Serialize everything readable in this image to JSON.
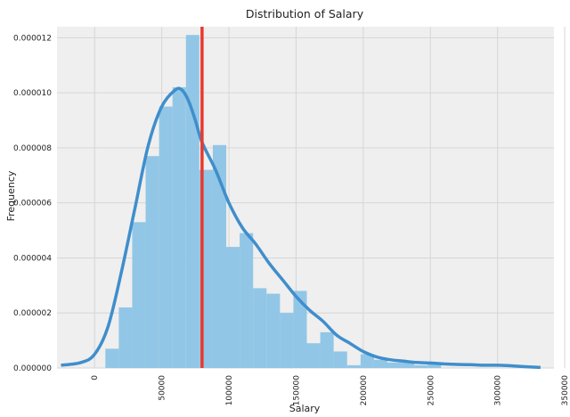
{
  "chart_data": {
    "type": "bar",
    "title": "Distribution of Salary",
    "xlabel": "Salary",
    "ylabel": "Frequency",
    "xlim": [
      -28000,
      342000
    ],
    "ylim": [
      0,
      1.24e-05
    ],
    "x_ticks": [
      0,
      50000,
      100000,
      150000,
      200000,
      250000,
      300000,
      350000
    ],
    "y_ticks": [
      {
        "value": 0.0,
        "label": "0.000000"
      },
      {
        "value": 2e-06,
        "label": "0.000002"
      },
      {
        "value": 4e-06,
        "label": "0.000004"
      },
      {
        "value": 6e-06,
        "label": "0.000006"
      },
      {
        "value": 8e-06,
        "label": "0.000008"
      },
      {
        "value": 1e-05,
        "label": "0.000010"
      },
      {
        "value": 1.2e-05,
        "label": "0.000012"
      }
    ],
    "grid": true,
    "histogram": {
      "bin_start": 8000,
      "bin_width": 10000,
      "values": [
        7e-07,
        2.2e-06,
        5.3e-06,
        7.7e-06,
        9.5e-06,
        1.02e-05,
        1.21e-05,
        7.2e-06,
        8.1e-06,
        4.4e-06,
        4.9e-06,
        2.9e-06,
        2.7e-06,
        2e-06,
        2.8e-06,
        9e-07,
        1.3e-06,
        6e-07,
        1e-07,
        5e-07,
        3e-07,
        2e-07,
        2e-07,
        1e-07,
        2e-07
      ],
      "color": "#92c6e6"
    },
    "kde": {
      "x": [
        -25000,
        -10000,
        0,
        10000,
        20000,
        30000,
        40000,
        50000,
        60000,
        65000,
        70000,
        75000,
        80000,
        90000,
        100000,
        110000,
        120000,
        130000,
        140000,
        150000,
        160000,
        170000,
        180000,
        190000,
        200000,
        210000,
        220000,
        230000,
        240000,
        250000,
        260000,
        270000,
        280000,
        290000,
        300000,
        310000,
        320000,
        332000
      ],
      "y": [
        1e-07,
        2e-07,
        5e-07,
        1.5e-06,
        3.5e-06,
        5.8e-06,
        8.1e-06,
        9.5e-06,
        1.01e-05,
        1.01e-05,
        9.7e-06,
        9e-06,
        8.2e-06,
        7.2e-06,
        6e-06,
        5.1e-06,
        4.5e-06,
        3.8e-06,
        3.2e-06,
        2.6e-06,
        2.1e-06,
        1.7e-06,
        1.2e-06,
        9e-07,
        6e-07,
        4e-07,
        3e-07,
        2.5e-07,
        2e-07,
        1.8e-07,
        1.5e-07,
        1.3e-07,
        1.2e-07,
        1e-07,
        1e-07,
        8e-08,
        5e-08,
        2e-08
      ],
      "color": "#3f8ecc"
    },
    "reference_line": {
      "x": 80000,
      "color": "#e8392e"
    },
    "colors": {
      "plot_background": "#efefef",
      "grid": "#d6d6d6"
    }
  }
}
